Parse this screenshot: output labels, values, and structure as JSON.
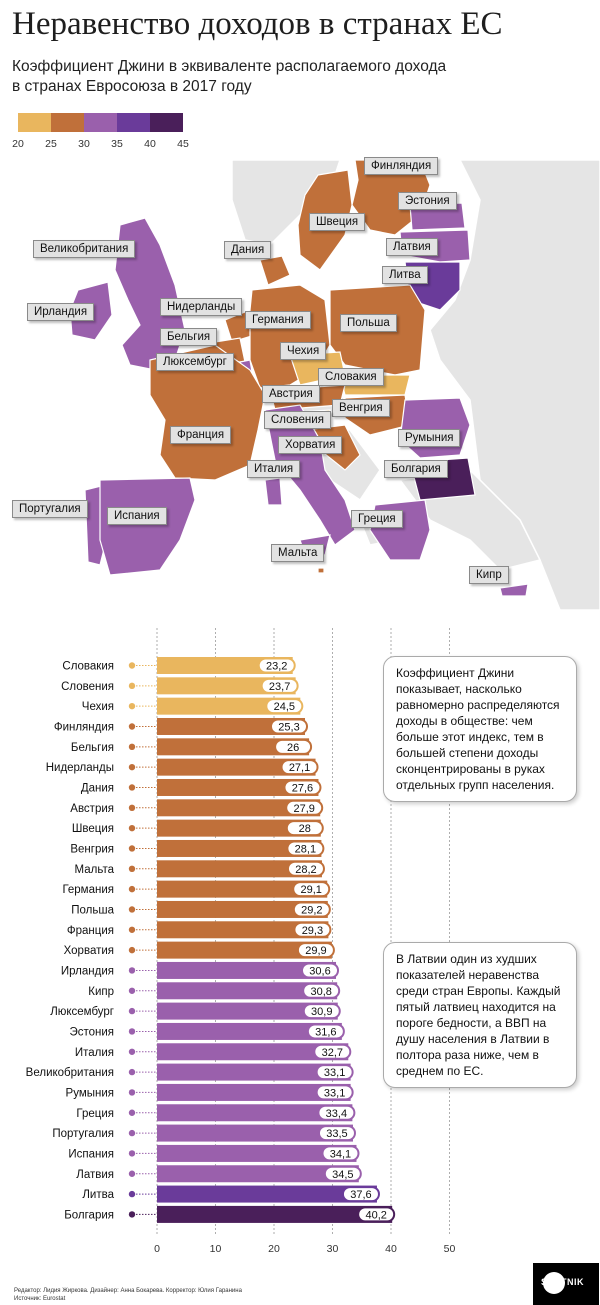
{
  "title": "Неравенство доходов в странах ЕС",
  "subtitle_line1": "Коэффициент Джини в эквиваленте располагаемого дохода",
  "subtitle_line2": "в странах Евросоюза в 2017 году",
  "legend": {
    "ticks": [
      "20",
      "25",
      "30",
      "35",
      "40",
      "45"
    ],
    "colors": [
      "#e9b65e",
      "#c0703a",
      "#9a60ac",
      "#6a3b9a",
      "#4a1f5a"
    ]
  },
  "colors": {
    "low": "#e9b65e",
    "mid": "#c0703a",
    "high": "#9a60ac",
    "very_high": "#6a3b9a",
    "top": "#4a1f5a",
    "non_eu": "#e5e5e5"
  },
  "map_labels": [
    "Финляндия",
    "Эстония",
    "Швеция",
    "Латвия",
    "Великобритания",
    "Дания",
    "Литва",
    "Нидерланды",
    "Германия",
    "Ирландия",
    "Польша",
    "Бельгия",
    "Чехия",
    "Люксембург",
    "Словакия",
    "Австрия",
    "Венгрия",
    "Словения",
    "Франция",
    "Румыния",
    "Хорватия",
    "Италия",
    "Болгария",
    "Португалия",
    "Испания",
    "Греция",
    "Мальта",
    "Кипр"
  ],
  "chart_data": {
    "type": "bar",
    "orientation": "horizontal",
    "categories": [
      "Словакия",
      "Словения",
      "Чехия",
      "Финляндия",
      "Бельгия",
      "Нидерланды",
      "Дания",
      "Австрия",
      "Швеция",
      "Венгрия",
      "Мальта",
      "Германия",
      "Польша",
      "Франция",
      "Хорватия",
      "Ирландия",
      "Кипр",
      "Люксембург",
      "Эстония",
      "Италия",
      "Великобритания",
      "Румыния",
      "Греция",
      "Португалия",
      "Испания",
      "Латвия",
      "Литва",
      "Болгария"
    ],
    "values": [
      23.2,
      23.7,
      24.5,
      25.3,
      26,
      27.1,
      27.6,
      27.9,
      28,
      28.1,
      28.2,
      29.1,
      29.2,
      29.3,
      29.9,
      30.6,
      30.8,
      30.9,
      31.6,
      32.7,
      33.1,
      33.1,
      33.4,
      33.5,
      34.1,
      34.5,
      37.6,
      40.2
    ],
    "value_labels": [
      "23,2",
      "23,7",
      "24,5",
      "25,3",
      "26",
      "27,1",
      "27,6",
      "27,9",
      "28",
      "28,1",
      "28,2",
      "29,1",
      "29,2",
      "29,3",
      "29,9",
      "30,6",
      "30,8",
      "30,9",
      "31,6",
      "32,7",
      "33,1",
      "33,1",
      "33,4",
      "33,5",
      "34,1",
      "34,5",
      "37,6",
      "40,2"
    ],
    "xlim": [
      0,
      50
    ],
    "xticks": [
      "0",
      "10",
      "20",
      "30",
      "40",
      "50"
    ],
    "grid": true,
    "xlabel": "",
    "ylabel": "",
    "title": "Коэффициент Джини в эквиваленте располагаемого дохода в странах Евросоюза в 2017 году"
  },
  "notes": {
    "gini_text": "Коэффициент Джини показывает, насколько равномерно распределяются доходы в обществе: чем больше этот индекс, тем в большей сте­пени доходы сконцентрированы в руках отдельных групп населе­ния.",
    "latvia_text": "В Латвии один из худших показателей неравенства среди стран Европы. Каждый пятый латвиец находится на пороге бедности, а ВВП на душу населения в Латвии в полтора раза ниже, чем в среднем по ЕС."
  },
  "footer": {
    "credits": "Редактор: Лидия Жиркова. Дизайнер: Анна Бокарева. Корректор: Юлия Гаранина",
    "source": "Источник: Eurostat"
  },
  "logo_text": "SPUTNIK"
}
